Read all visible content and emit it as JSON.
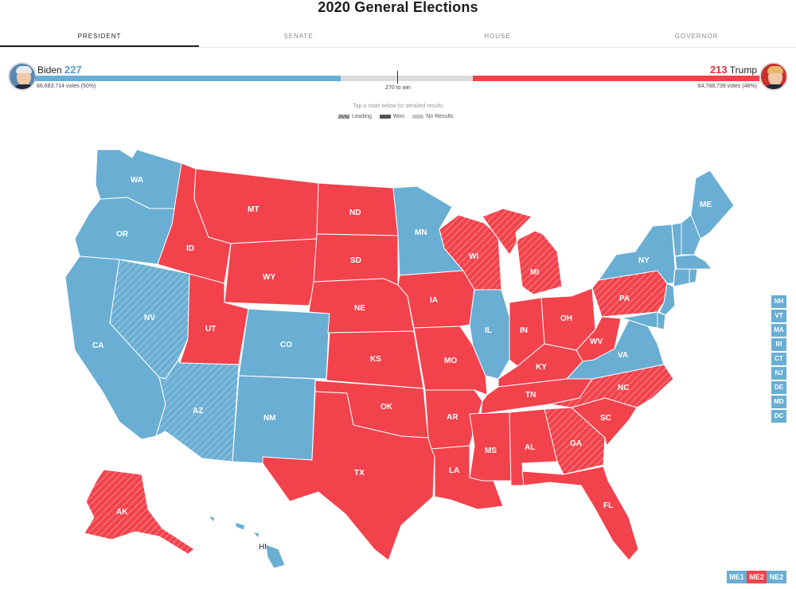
{
  "title": "2020 General Elections",
  "tabs": [
    "PRESIDENT",
    "SENATE",
    "HOUSE",
    "GOVERNOR"
  ],
  "active_tab": "PRESIDENT",
  "biden": {
    "name": "Biden",
    "ev": "227",
    "votes": "66,683,714 votes (50%)",
    "ev_value": 227
  },
  "trump": {
    "name": "Trump",
    "ev": "213",
    "votes": "64,788,739 votes (48%)",
    "ev_value": 213
  },
  "total_ev": 538,
  "to_win": "270 to win",
  "tap_hint": "Tap a state below for detailed results",
  "legend": {
    "leading": "Leading",
    "won": "Won",
    "none": "No Results"
  },
  "colors": {
    "dem": "#6aaed3",
    "gop": "#f2424c",
    "pending": "#dcdcdc"
  },
  "states": {
    "WA": {
      "label": "WA",
      "party": "D",
      "status": "won"
    },
    "OR": {
      "label": "OR",
      "party": "D",
      "status": "won"
    },
    "CA": {
      "label": "CA",
      "party": "D",
      "status": "won"
    },
    "NV": {
      "label": "NV",
      "party": "D",
      "status": "leading"
    },
    "ID": {
      "label": "ID",
      "party": "R",
      "status": "won"
    },
    "MT": {
      "label": "MT",
      "party": "R",
      "status": "won"
    },
    "WY": {
      "label": "WY",
      "party": "R",
      "status": "won"
    },
    "UT": {
      "label": "UT",
      "party": "R",
      "status": "won"
    },
    "AZ": {
      "label": "AZ",
      "party": "D",
      "status": "leading"
    },
    "CO": {
      "label": "CO",
      "party": "D",
      "status": "won"
    },
    "NM": {
      "label": "NM",
      "party": "D",
      "status": "won"
    },
    "ND": {
      "label": "ND",
      "party": "R",
      "status": "won"
    },
    "SD": {
      "label": "SD",
      "party": "R",
      "status": "won"
    },
    "NE": {
      "label": "NE",
      "party": "R",
      "status": "won"
    },
    "KS": {
      "label": "KS",
      "party": "R",
      "status": "won"
    },
    "OK": {
      "label": "OK",
      "party": "R",
      "status": "won"
    },
    "TX": {
      "label": "TX",
      "party": "R",
      "status": "won"
    },
    "MN": {
      "label": "MN",
      "party": "D",
      "status": "won"
    },
    "IA": {
      "label": "IA",
      "party": "R",
      "status": "won"
    },
    "MO": {
      "label": "MO",
      "party": "R",
      "status": "won"
    },
    "AR": {
      "label": "AR",
      "party": "R",
      "status": "won"
    },
    "LA": {
      "label": "LA",
      "party": "R",
      "status": "won"
    },
    "WI": {
      "label": "WI",
      "party": "R",
      "status": "leading"
    },
    "IL": {
      "label": "IL",
      "party": "D",
      "status": "won"
    },
    "MI": {
      "label": "MI",
      "party": "R",
      "status": "leading"
    },
    "IN": {
      "label": "IN",
      "party": "R",
      "status": "won"
    },
    "OH": {
      "label": "OH",
      "party": "R",
      "status": "won"
    },
    "KY": {
      "label": "KY",
      "party": "R",
      "status": "won"
    },
    "TN": {
      "label": "TN",
      "party": "R",
      "status": "won"
    },
    "MS": {
      "label": "MS",
      "party": "R",
      "status": "won"
    },
    "AL": {
      "label": "AL",
      "party": "R",
      "status": "won"
    },
    "GA": {
      "label": "GA",
      "party": "R",
      "status": "leading"
    },
    "FL": {
      "label": "FL",
      "party": "R",
      "status": "won"
    },
    "SC": {
      "label": "SC",
      "party": "R",
      "status": "won"
    },
    "NC": {
      "label": "NC",
      "party": "R",
      "status": "leading"
    },
    "VA": {
      "label": "VA",
      "party": "D",
      "status": "won"
    },
    "WV": {
      "label": "WV",
      "party": "R",
      "status": "won"
    },
    "PA": {
      "label": "PA",
      "party": "R",
      "status": "leading"
    },
    "NY": {
      "label": "NY",
      "party": "D",
      "status": "won"
    },
    "ME": {
      "label": "ME",
      "party": "D",
      "status": "won"
    },
    "AK": {
      "label": "AK",
      "party": "R",
      "status": "leading"
    },
    "HI": {
      "label": "HI",
      "party": "D",
      "status": "won"
    }
  },
  "small_states": [
    "NH",
    "VT",
    "MA",
    "RI",
    "CT",
    "NJ",
    "DE",
    "MD",
    "DC"
  ],
  "districts": [
    {
      "label": "ME1",
      "party": "D"
    },
    {
      "label": "ME2",
      "party": "R"
    },
    {
      "label": "NE2",
      "party": "D"
    }
  ]
}
